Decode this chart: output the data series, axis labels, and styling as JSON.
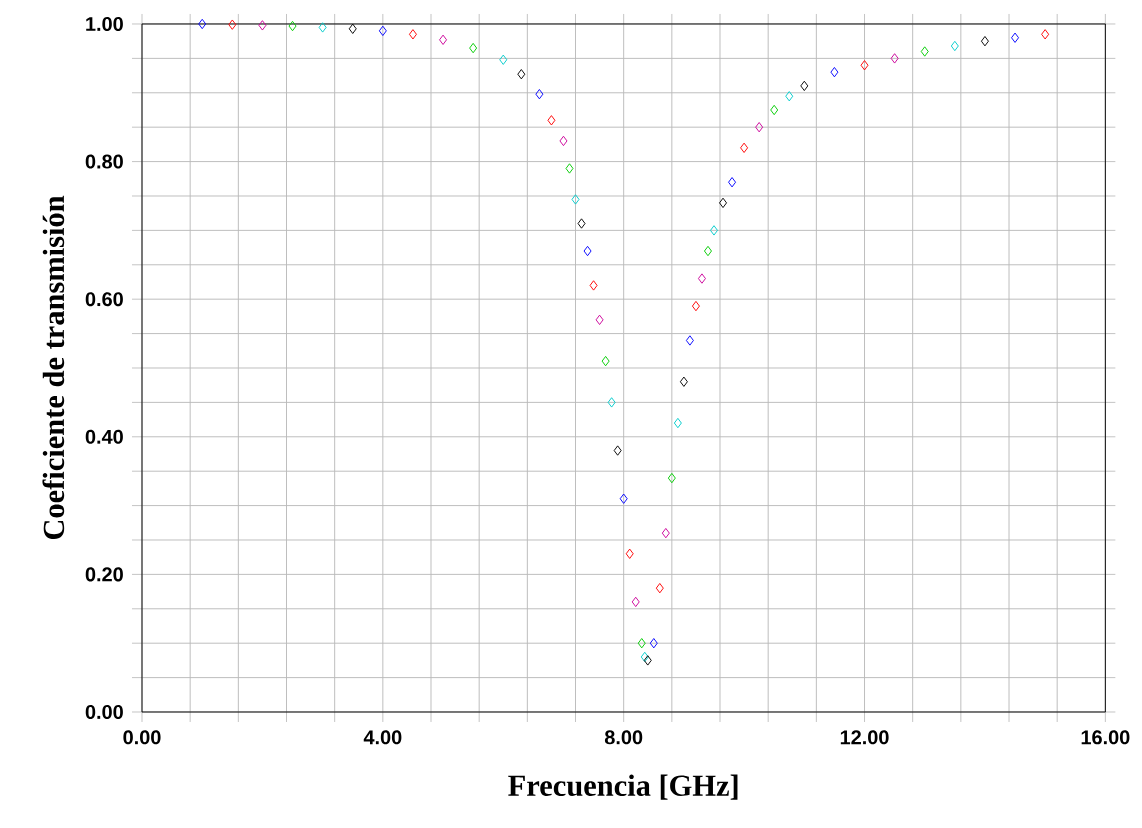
{
  "chart_data": {
    "type": "scatter",
    "xlabel": "Frecuencia [GHz]",
    "ylabel": "Coeficiente de transmisión",
    "marker": "diamond",
    "grid": true,
    "xlim": [
      0,
      16
    ],
    "ylim": [
      0,
      1
    ],
    "xticks": [
      {
        "value": 0,
        "label": "0.00"
      },
      {
        "value": 0.8,
        "label": null
      },
      {
        "value": 1.6,
        "label": null
      },
      {
        "value": 2.4,
        "label": null
      },
      {
        "value": 3.2,
        "label": null
      },
      {
        "value": 4,
        "label": "4.00"
      },
      {
        "value": 4.8,
        "label": null
      },
      {
        "value": 5.6,
        "label": null
      },
      {
        "value": 6.4,
        "label": null
      },
      {
        "value": 7.2,
        "label": null
      },
      {
        "value": 8,
        "label": "8.00"
      },
      {
        "value": 8.8,
        "label": null
      },
      {
        "value": 9.6,
        "label": null
      },
      {
        "value": 10.4,
        "label": null
      },
      {
        "value": 11.2,
        "label": null
      },
      {
        "value": 12,
        "label": "12.00"
      },
      {
        "value": 12.8,
        "label": null
      },
      {
        "value": 13.6,
        "label": null
      },
      {
        "value": 14.4,
        "label": null
      },
      {
        "value": 15.2,
        "label": null
      },
      {
        "value": 16,
        "label": "16.00"
      }
    ],
    "yticks": [
      {
        "value": 0,
        "label": "0.00"
      },
      {
        "value": 0.05,
        "label": null
      },
      {
        "value": 0.1,
        "label": null
      },
      {
        "value": 0.15,
        "label": null
      },
      {
        "value": 0.2,
        "label": "0.20"
      },
      {
        "value": 0.25,
        "label": null
      },
      {
        "value": 0.3,
        "label": null
      },
      {
        "value": 0.35,
        "label": null
      },
      {
        "value": 0.4,
        "label": "0.40"
      },
      {
        "value": 0.45,
        "label": null
      },
      {
        "value": 0.5,
        "label": null
      },
      {
        "value": 0.55,
        "label": null
      },
      {
        "value": 0.6,
        "label": "0.60"
      },
      {
        "value": 0.65,
        "label": null
      },
      {
        "value": 0.7,
        "label": null
      },
      {
        "value": 0.75,
        "label": null
      },
      {
        "value": 0.8,
        "label": "0.80"
      },
      {
        "value": 0.85,
        "label": null
      },
      {
        "value": 0.9,
        "label": null
      },
      {
        "value": 0.95,
        "label": null
      },
      {
        "value": 1,
        "label": "1.00"
      }
    ],
    "x": [
      1,
      1.5,
      2,
      2.5,
      3,
      3.5,
      4,
      4.5,
      5,
      5.5,
      6,
      6.3,
      6.6,
      6.8,
      7,
      7.1,
      7.2,
      7.3,
      7.4,
      7.5,
      7.6,
      7.7,
      7.8,
      7.9,
      8,
      8.1,
      8.2,
      8.3,
      8.35,
      8.4,
      8.5,
      8.6,
      8.7,
      8.8,
      8.9,
      9,
      9.1,
      9.2,
      9.3,
      9.4,
      9.5,
      9.65,
      9.8,
      10,
      10.25,
      10.5,
      10.75,
      11,
      11.5,
      12,
      12.5,
      13,
      13.5,
      14,
      14.5,
      15
    ],
    "series": [
      {
        "values": [
          1.0,
          0.999,
          0.998,
          0.997,
          0.995,
          0.993,
          0.99,
          0.985,
          0.977,
          0.965,
          0.948,
          0.927,
          0.898,
          0.86,
          0.83,
          0.79,
          0.745,
          0.71,
          0.67,
          0.62,
          0.57,
          0.51,
          0.45,
          0.38,
          0.31,
          0.23,
          0.16,
          0.1,
          0.08,
          0.075,
          0.1,
          0.18,
          0.26,
          0.34,
          0.42,
          0.48,
          0.54,
          0.59,
          0.63,
          0.67,
          0.7,
          0.74,
          0.77,
          0.82,
          0.85,
          0.875,
          0.895,
          0.91,
          0.93,
          0.94,
          0.95,
          0.96,
          0.968,
          0.975,
          0.98,
          0.985
        ],
        "colors": [
          "#0000ff",
          "#ff0000",
          "#cc0099",
          "#00cc00",
          "#00cccc",
          "#000000",
          "#0000ff",
          "#ff0000",
          "#cc0099",
          "#00cc00",
          "#00cccc",
          "#000000",
          "#0000ff",
          "#ff0000",
          "#cc0099",
          "#00cc00",
          "#00cccc",
          "#000000",
          "#0000ff",
          "#ff0000",
          "#cc0099",
          "#00cc00",
          "#00cccc",
          "#000000",
          "#0000ff",
          "#ff0000",
          "#cc0099",
          "#00cc00",
          "#00cccc",
          "#000000",
          "#0000ff",
          "#ff0000",
          "#cc0099",
          "#00cc00",
          "#00cccc",
          "#000000",
          "#0000ff",
          "#ff0000",
          "#cc0099",
          "#00cc00",
          "#00cccc",
          "#000000",
          "#0000ff",
          "#ff0000",
          "#cc0099",
          "#00cc00",
          "#00cccc",
          "#000000",
          "#0000ff",
          "#ff0000",
          "#cc0099",
          "#00cc00",
          "#00cccc",
          "#000000",
          "#0000ff",
          "#ff0000"
        ]
      }
    ]
  }
}
